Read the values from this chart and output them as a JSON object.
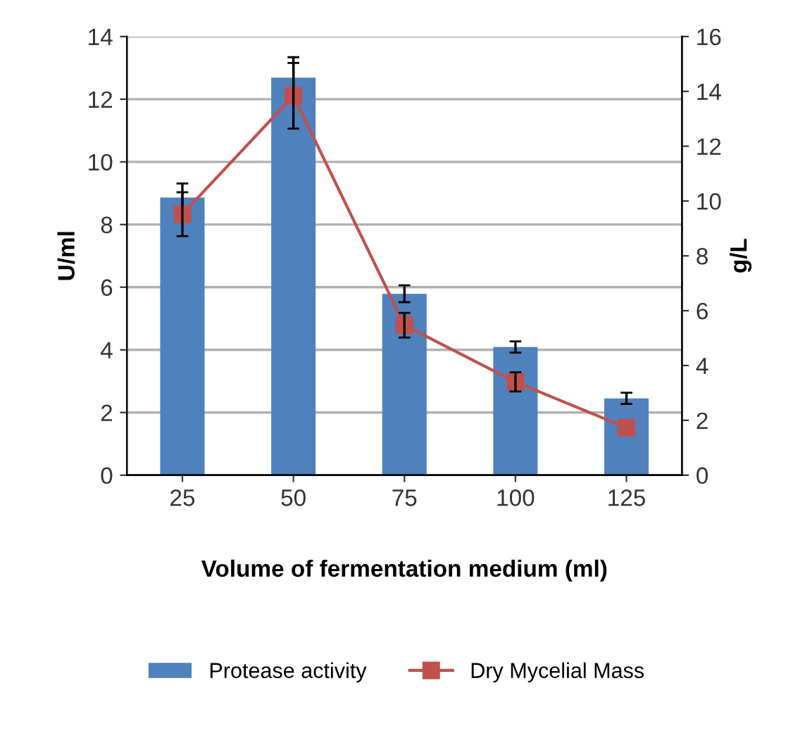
{
  "chart_data": {
    "type": "bar",
    "xlabel": "Volume of fermentation medium (ml)",
    "ylabel": "U/ml",
    "y2label": "g/L",
    "categories": [
      "25",
      "50",
      "75",
      "100",
      "125"
    ],
    "series": [
      {
        "name": "Protease activity",
        "color": "#4f81bd",
        "values": [
          8.86,
          12.69,
          5.79,
          4.09,
          2.45
        ],
        "errors": [
          0.45,
          0.65,
          0.27,
          0.18,
          0.18
        ]
      },
      {
        "name": "Dry Mycelial Mass",
        "type": "line",
        "axis": "y2",
        "color": "#c0504d",
        "marker": "square",
        "values": [
          9.52,
          13.84,
          5.47,
          3.4,
          1.73
        ],
        "errors": [
          0.8,
          1.2,
          0.45,
          0.35,
          null
        ]
      }
    ],
    "ylim": [
      0,
      14
    ],
    "yticks": [
      0,
      2,
      4,
      6,
      8,
      10,
      12,
      14
    ],
    "y2lim": [
      0,
      16
    ],
    "y2ticks": [
      0,
      2,
      4,
      6,
      8,
      10,
      12,
      14,
      16
    ],
    "grid": "y",
    "legend": "bottom"
  }
}
